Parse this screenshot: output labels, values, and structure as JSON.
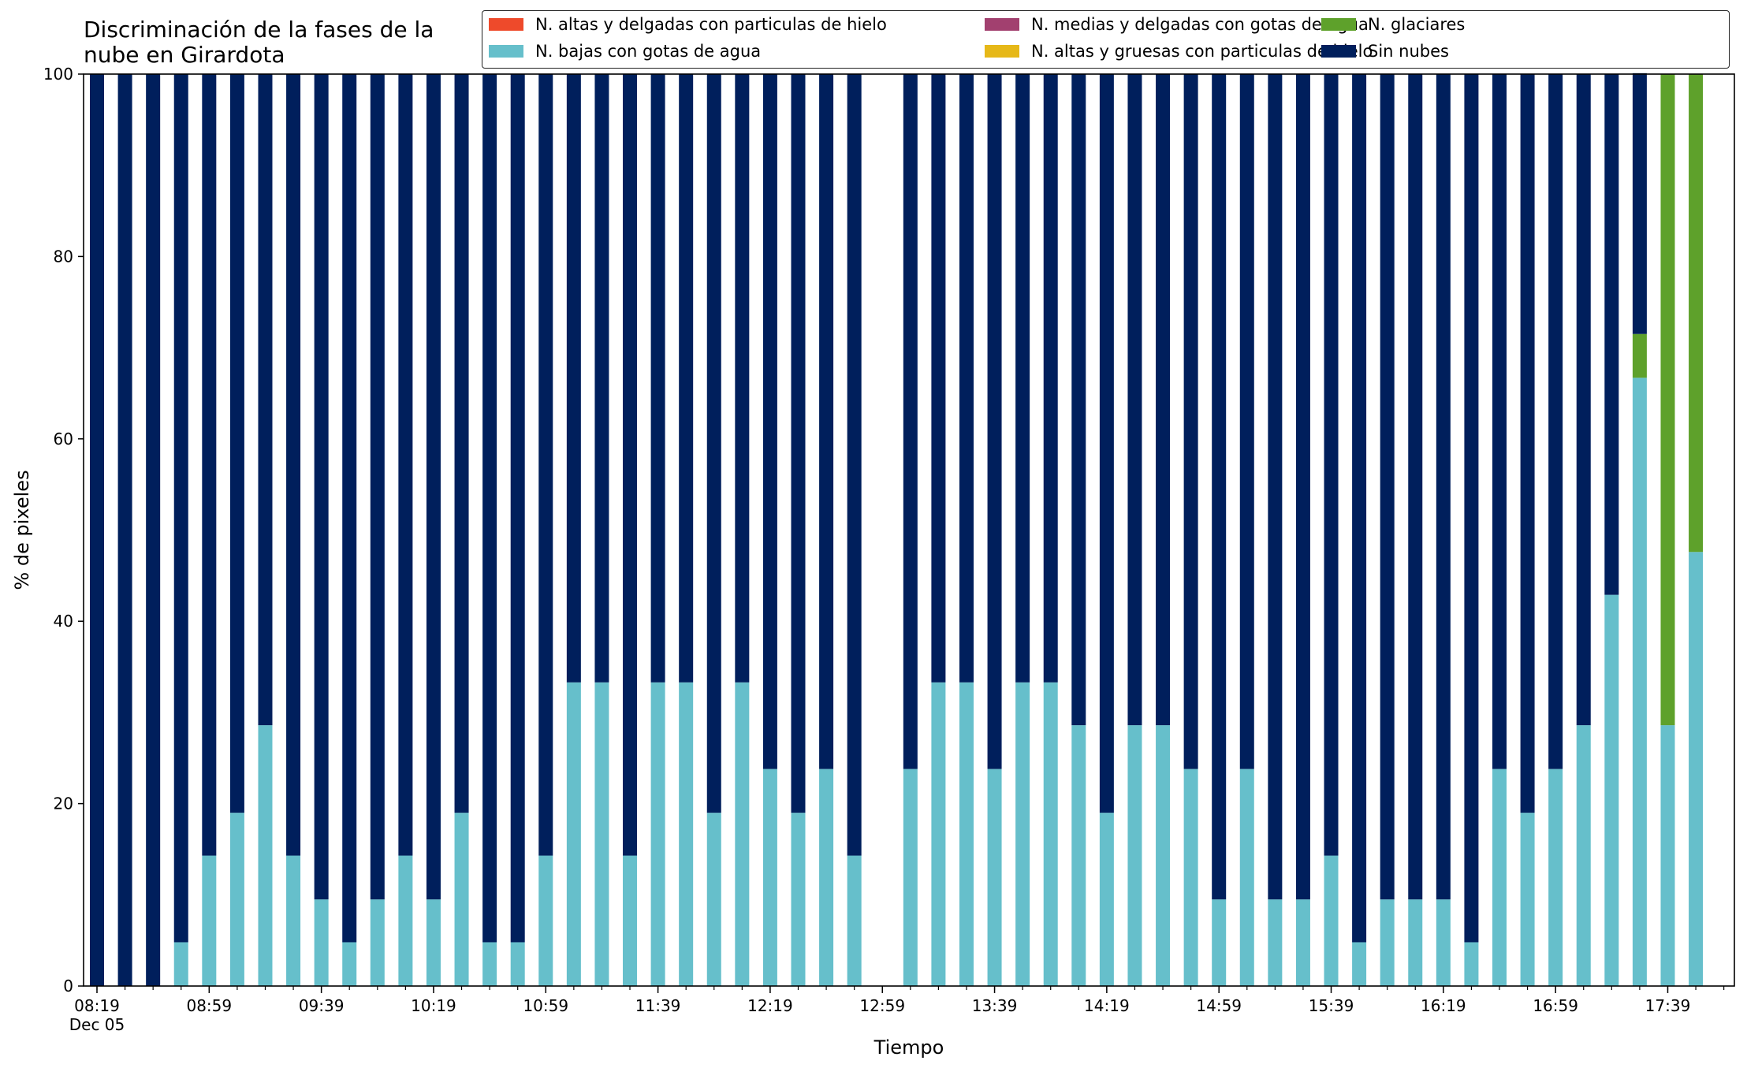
{
  "chart_data": {
    "type": "bar",
    "stacked": true,
    "title": "Discriminación de la fases de la nube en Girardota",
    "xlabel": "Tiempo",
    "ylabel": "% de pixeles",
    "ylim": [
      0,
      100
    ],
    "yticks": [
      0,
      20,
      40,
      60,
      80,
      100
    ],
    "xtick_labels": [
      "08:19",
      "08:59",
      "09:39",
      "10:19",
      "10:59",
      "11:39",
      "12:19",
      "12:59",
      "13:39",
      "14:19",
      "14:59",
      "15:39",
      "16:19",
      "16:59",
      "17:39"
    ],
    "xtick_date": "Dec 05",
    "x_interval_minutes": 10,
    "legend_position": "top-right",
    "categories": [
      "08:19",
      "08:29",
      "08:39",
      "08:49",
      "08:59",
      "09:09",
      "09:19",
      "09:29",
      "09:39",
      "09:49",
      "09:59",
      "10:09",
      "10:19",
      "10:29",
      "10:39",
      "10:49",
      "10:59",
      "11:09",
      "11:19",
      "11:29",
      "11:39",
      "11:49",
      "11:59",
      "12:09",
      "12:19",
      "12:29",
      "12:39",
      "12:49",
      "12:59",
      "13:09",
      "13:19",
      "13:29",
      "13:39",
      "13:49",
      "13:59",
      "14:09",
      "14:19",
      "14:29",
      "14:39",
      "14:49",
      "14:59",
      "15:09",
      "15:19",
      "15:29",
      "15:39",
      "15:49",
      "15:59",
      "16:09",
      "16:19",
      "16:29",
      "16:39",
      "16:49",
      "16:59",
      "17:09",
      "17:19",
      "17:29",
      "17:39",
      "17:49"
    ],
    "series": [
      {
        "name": "N. altas y delgadas con particulas de hielo",
        "color": "#ee4a2b",
        "values": [
          0,
          0,
          0,
          0,
          0,
          0,
          0,
          0,
          0,
          0,
          0,
          0,
          0,
          0,
          0,
          0,
          0,
          0,
          0,
          0,
          0,
          0,
          0,
          0,
          0,
          0,
          0,
          0,
          null,
          0,
          0,
          0,
          0,
          0,
          0,
          0,
          0,
          0,
          0,
          0,
          0,
          0,
          0,
          0,
          0,
          0,
          0,
          0,
          0,
          0,
          0,
          0,
          0,
          0,
          0,
          0,
          0,
          0
        ]
      },
      {
        "name": "N. altas y gruesas con particulas de hielo",
        "color": "#e6b818",
        "values": [
          0,
          0,
          0,
          0,
          0,
          0,
          0,
          0,
          0,
          0,
          0,
          0,
          0,
          0,
          0,
          0,
          0,
          0,
          0,
          0,
          0,
          0,
          0,
          0,
          0,
          0,
          0,
          0,
          null,
          0,
          0,
          0,
          0,
          0,
          0,
          0,
          0,
          0,
          0,
          0,
          0,
          0,
          0,
          0,
          0,
          0,
          0,
          0,
          0,
          0,
          0,
          0,
          0,
          0,
          0,
          0,
          0,
          0
        ]
      },
      {
        "name": "N. bajas con gotas de agua",
        "color": "#66bfcb",
        "values": [
          0,
          0,
          0,
          4.8,
          14.3,
          19.0,
          28.6,
          14.3,
          9.5,
          4.8,
          9.5,
          14.3,
          9.5,
          19.0,
          4.8,
          4.8,
          14.3,
          33.3,
          33.3,
          14.3,
          33.3,
          33.3,
          19.0,
          33.3,
          23.8,
          19.0,
          23.8,
          14.3,
          null,
          23.8,
          33.3,
          33.3,
          23.8,
          33.3,
          33.3,
          28.6,
          19.0,
          28.6,
          28.6,
          23.8,
          9.5,
          23.8,
          9.5,
          9.5,
          14.3,
          4.8,
          9.5,
          9.5,
          9.5,
          4.8,
          23.8,
          19.0,
          23.8,
          28.6,
          42.9,
          66.7,
          28.6,
          47.6
        ]
      },
      {
        "name": "N. glaciares",
        "color": "#5ea12b",
        "values": [
          0,
          0,
          0,
          0,
          0,
          0,
          0,
          0,
          0,
          0,
          0,
          0,
          0,
          0,
          0,
          0,
          0,
          0,
          0,
          0,
          0,
          0,
          0,
          0,
          0,
          0,
          0,
          0,
          null,
          0,
          0,
          0,
          0,
          0,
          0,
          0,
          0,
          0,
          0,
          0,
          0,
          0,
          0,
          0,
          0,
          0,
          0,
          0,
          0,
          0,
          0,
          0,
          0,
          0,
          0,
          4.8,
          71.4,
          52.4
        ]
      },
      {
        "name": "N. medias y delgadas con gotas de agua",
        "color": "#a2406f",
        "values": [
          0,
          0,
          0,
          0,
          0,
          0,
          0,
          0,
          0,
          0,
          0,
          0,
          0,
          0,
          0,
          0,
          0,
          0,
          0,
          0,
          0,
          0,
          0,
          0,
          0,
          0,
          0,
          0,
          null,
          0,
          0,
          0,
          0,
          0,
          0,
          0,
          0,
          0,
          0,
          0,
          0,
          0,
          0,
          0,
          0,
          0,
          0,
          0,
          0,
          0,
          0,
          0,
          0,
          0,
          0,
          0,
          0,
          0
        ]
      },
      {
        "name": "Sin nubes",
        "color": "#001f5c",
        "values": [
          100,
          100,
          100,
          95.2,
          85.7,
          81.0,
          71.4,
          85.7,
          90.5,
          95.2,
          90.5,
          85.7,
          90.5,
          81.0,
          95.2,
          95.2,
          85.7,
          66.7,
          66.7,
          85.7,
          66.7,
          66.7,
          81.0,
          66.7,
          76.2,
          81.0,
          76.2,
          85.7,
          null,
          76.2,
          66.7,
          66.7,
          76.2,
          66.7,
          66.7,
          71.4,
          81.0,
          71.4,
          71.4,
          76.2,
          90.5,
          76.2,
          90.5,
          90.5,
          85.7,
          95.2,
          90.5,
          90.5,
          90.5,
          95.2,
          76.2,
          81.0,
          76.2,
          71.4,
          57.1,
          28.6,
          0,
          0
        ]
      }
    ],
    "legend_order": [
      0,
      2,
      4,
      1,
      3,
      5
    ]
  }
}
